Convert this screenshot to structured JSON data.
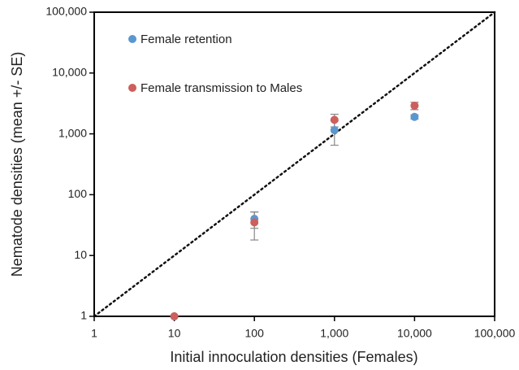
{
  "chart_data": {
    "type": "scatter",
    "x_label": "Initial innoculation densities (Females)",
    "y_label": "Nematode densities (mean +/- SE)",
    "log_x": true,
    "log_y": true,
    "xlim": [
      1,
      100000
    ],
    "ylim": [
      1,
      100000
    ],
    "xticks": [
      1,
      10,
      100,
      {
        "value": 1000,
        "label": "1,000"
      },
      {
        "value": 10000,
        "label": "10,000"
      },
      {
        "value": 100000,
        "label": "100,000"
      }
    ],
    "yticks": [
      1,
      10,
      100,
      {
        "value": 1000,
        "label": "1,000"
      },
      {
        "value": 10000,
        "label": "10,000"
      },
      {
        "value": 100000,
        "label": "100,000"
      }
    ],
    "legend": "upper left",
    "series": [
      {
        "name": "Female retention",
        "color": "#5b97cf",
        "x": [
          10,
          100,
          1000,
          10000
        ],
        "values": [
          1,
          40,
          1150,
          1900
        ],
        "errors": [
          0,
          12,
          500,
          150
        ]
      },
      {
        "name": "Female transmission to Males",
        "color": "#cd5f5c",
        "x": [
          10,
          100,
          1000,
          10000
        ],
        "values": [
          1,
          35,
          1700,
          2900
        ],
        "errors": [
          0,
          17,
          400,
          400
        ]
      }
    ]
  }
}
